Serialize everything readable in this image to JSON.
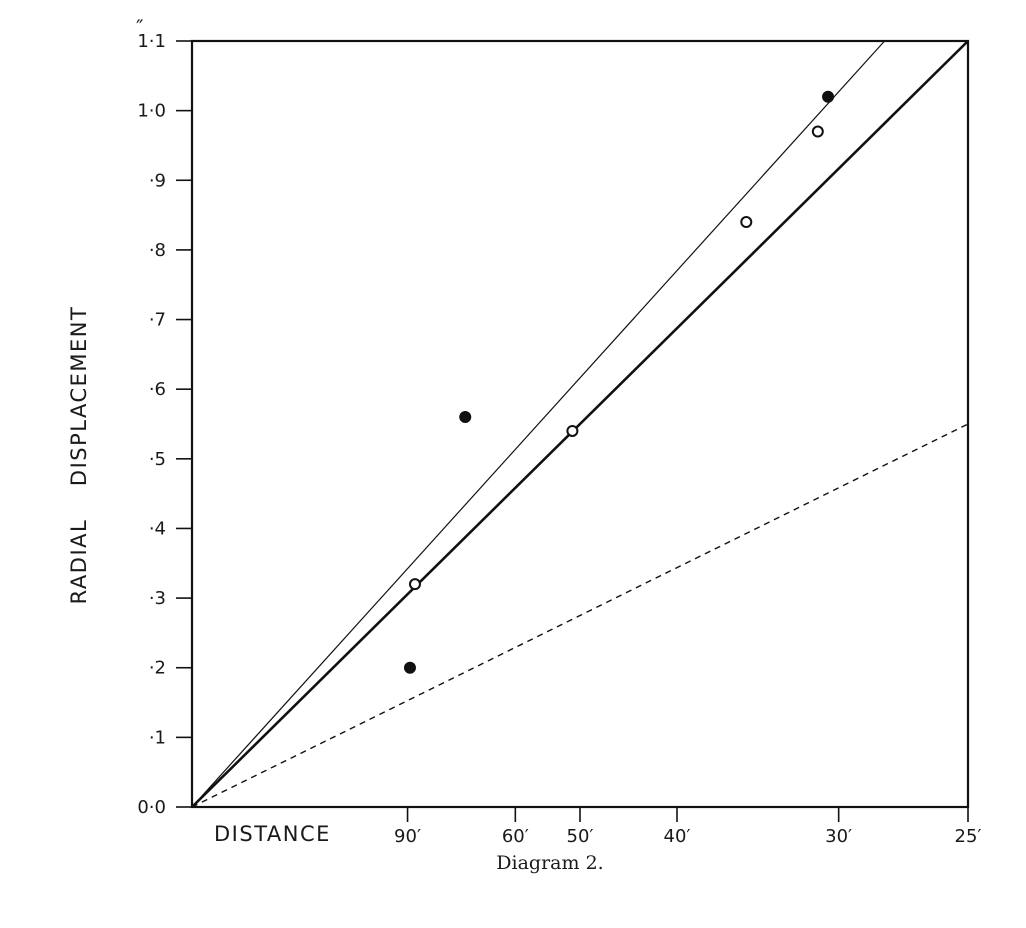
{
  "chart_data": {
    "type": "scatter",
    "title": "",
    "caption": "Diagram 2.",
    "ylabel": "RADIAL    DISPLACEMENT",
    "xlabel": "DISTANCE",
    "y_unit": "″",
    "ylim": [
      0,
      1.1
    ],
    "y_ticks": [
      {
        "value": 0.0,
        "label": "0·0"
      },
      {
        "value": 0.1,
        "label": "·1"
      },
      {
        "value": 0.2,
        "label": "·2"
      },
      {
        "value": 0.3,
        "label": "·3"
      },
      {
        "value": 0.4,
        "label": "·4"
      },
      {
        "value": 0.5,
        "label": "·5"
      },
      {
        "value": 0.6,
        "label": "·6"
      },
      {
        "value": 0.7,
        "label": "·7"
      },
      {
        "value": 0.8,
        "label": "·8"
      },
      {
        "value": 0.9,
        "label": "·9"
      },
      {
        "value": 1.0,
        "label": "1·0"
      },
      {
        "value": 1.1,
        "label": "1·1"
      }
    ],
    "x_scale": "reciprocal (1/distance), in arc-minutes",
    "xlim": [
      0,
      0.04
    ],
    "x_ticks": [
      {
        "value": 90,
        "label": "90′"
      },
      {
        "value": 60,
        "label": "60′"
      },
      {
        "value": 50,
        "label": "50′"
      },
      {
        "value": 40,
        "label": "40′"
      },
      {
        "value": 30,
        "label": "30′"
      },
      {
        "value": 25,
        "label": "25′"
      }
    ],
    "points": [
      {
        "distance": 89,
        "displacement": 0.2,
        "style": "filled"
      },
      {
        "distance": 87,
        "displacement": 0.32,
        "style": "open"
      },
      {
        "distance": 71,
        "displacement": 0.56,
        "style": "filled"
      },
      {
        "distance": 51,
        "displacement": 0.54,
        "style": "open"
      },
      {
        "distance": 35,
        "displacement": 0.84,
        "style": "open"
      },
      {
        "distance": 31,
        "displacement": 0.97,
        "style": "open"
      },
      {
        "distance": 30.5,
        "displacement": 1.02,
        "style": "filled"
      }
    ],
    "lines": [
      {
        "style": "thin",
        "from": {
          "inv_distance": 0,
          "displacement": 0
        },
        "to": {
          "inv_distance": 0.0357,
          "displacement": 1.1
        }
      },
      {
        "style": "thick",
        "from": {
          "inv_distance": 0,
          "displacement": 0
        },
        "to": {
          "inv_distance": 0.04,
          "displacement": 1.1
        }
      },
      {
        "style": "dashed",
        "from": {
          "inv_distance": 0,
          "displacement": 0
        },
        "to": {
          "inv_distance": 0.04,
          "displacement": 0.55
        }
      }
    ],
    "grid": false,
    "legend": "none"
  }
}
